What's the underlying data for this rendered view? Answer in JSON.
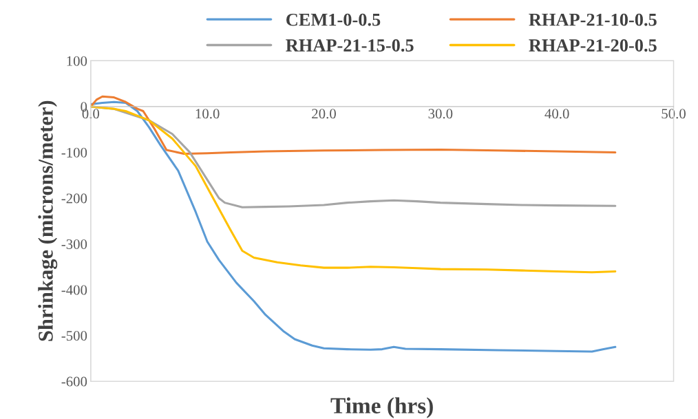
{
  "chart_data": {
    "type": "line",
    "xlabel": "Time (hrs)",
    "ylabel": "Shrinkage (microns/meter)",
    "xlim": [
      0,
      50
    ],
    "ylim": [
      -600,
      100
    ],
    "xticks": [
      {
        "value": 0,
        "label": "0.0"
      },
      {
        "value": 10,
        "label": "10.0"
      },
      {
        "value": 20,
        "label": "20.0"
      },
      {
        "value": 30,
        "label": "30.0"
      },
      {
        "value": 40,
        "label": "40.0"
      },
      {
        "value": 50,
        "label": "50.0"
      }
    ],
    "yticks": [
      -600,
      -500,
      -400,
      -300,
      -200,
      -100,
      0,
      100
    ],
    "grid": false,
    "legend": "top right",
    "line_style": "solid",
    "marker": "none",
    "series": [
      {
        "name": "CEM1-0-0.5",
        "color": "#5b9bd5",
        "x": [
          0,
          1,
          2,
          3,
          4,
          5,
          6,
          7.5,
          9,
          10,
          11,
          12.5,
          14,
          15,
          16.5,
          17.5,
          19,
          20,
          22,
          24,
          25,
          26,
          27,
          30,
          35,
          40,
          43,
          44,
          45
        ],
        "values": [
          5,
          8,
          10,
          8,
          -10,
          -45,
          -85,
          -140,
          -230,
          -295,
          -335,
          -385,
          -425,
          -455,
          -490,
          -508,
          -522,
          -528,
          -530,
          -531,
          -530,
          -525,
          -529,
          -530,
          -532,
          -534,
          -535,
          -530,
          -525
        ]
      },
      {
        "name": "RHAP-21-10-0.5",
        "color": "#ed7d31",
        "x": [
          0,
          0.5,
          1,
          2,
          3,
          4,
          4.5,
          5.5,
          6.5,
          8,
          10,
          12,
          15,
          20,
          25,
          30,
          35,
          40,
          45
        ],
        "values": [
          0,
          15,
          22,
          20,
          10,
          -5,
          -10,
          -50,
          -95,
          -103,
          -102,
          -100,
          -98,
          -96,
          -95,
          -94,
          -96,
          -98,
          -100
        ]
      },
      {
        "name": "RHAP-21-15-0.5",
        "color": "#a5a5a5",
        "x": [
          0,
          2,
          3,
          5,
          7,
          8.5,
          10,
          11,
          11.5,
          13,
          15,
          17,
          20,
          22,
          24,
          26,
          28,
          30,
          34,
          37,
          40,
          45
        ],
        "values": [
          0,
          -5,
          null,
          -30,
          -60,
          -100,
          -160,
          -200,
          -210,
          -220,
          -219,
          -218,
          -215,
          -210,
          -207,
          -205,
          -207,
          -210,
          -213,
          -215,
          -216,
          -217
        ]
      },
      {
        "name": "RHAP-21-20-0.5",
        "color": "#ffc000",
        "x": [
          0,
          2,
          3,
          5,
          7,
          9,
          10.5,
          12,
          13,
          14,
          16,
          18,
          20,
          22,
          24,
          26,
          28,
          30,
          34,
          37,
          40,
          43,
          45
        ],
        "values": [
          0,
          -5,
          -10,
          -30,
          -70,
          -130,
          -200,
          -270,
          -315,
          -330,
          -340,
          -347,
          -352,
          -352,
          -350,
          -351,
          -353,
          -355,
          -356,
          -358,
          -360,
          -362,
          -360
        ]
      }
    ]
  }
}
